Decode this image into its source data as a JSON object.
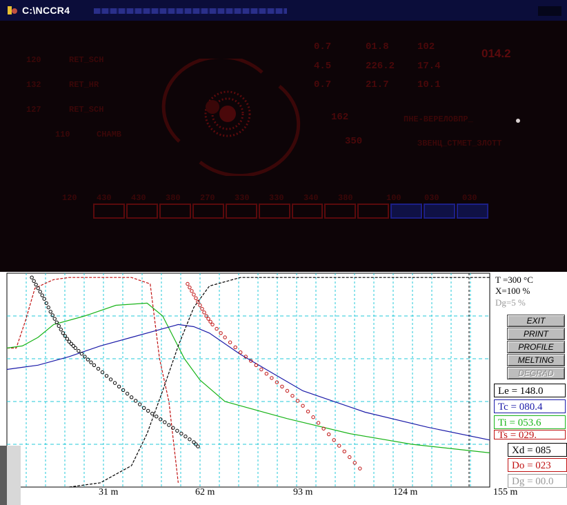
{
  "window": {
    "title": "C:\\NCCR4",
    "icon": "app-icon"
  },
  "upper_panel": {
    "rows_left": [
      {
        "value": "120",
        "label": "RET_SCH"
      },
      {
        "value": "132",
        "label": "RET_HR"
      },
      {
        "value": "127",
        "label": "RET_SCH"
      },
      {
        "value": "110",
        "label": "CHAMB"
      }
    ],
    "grid_right": [
      [
        "0.7",
        "01.8",
        "102"
      ],
      [
        "4.5",
        "226.2",
        "17.4"
      ],
      [
        "0.7",
        "21.7",
        "10.1"
      ]
    ],
    "big_value": "014.2",
    "mid_values": [
      "162",
      "350"
    ],
    "mid_labels": [
      "ПНЕ-ВЕРЕЛОВПР_",
      "ЗВЕНЦ_СТМЕТ_ЗЛОТТ"
    ],
    "scale_labels": [
      "120",
      "430",
      "430",
      "380",
      "270",
      "330",
      "330",
      "340",
      "380",
      "100",
      "030",
      "030"
    ]
  },
  "info": {
    "T": "T =300 °C",
    "X": "X=100 %",
    "Dg": "Dg=5 %"
  },
  "buttons": {
    "exit": "EXIT",
    "print": "PRINT",
    "profile": "PROFILE",
    "melting": "MELTING",
    "degrad": "DEGRAD"
  },
  "readouts": {
    "le": "Le = 148.0",
    "tc": "Tc = 080.4",
    "ti": "Ti = 053.6",
    "ts": "Ts = 029.",
    "xd": "Xd = 085",
    "do": "Do = 023",
    "dg": "Dg = 00.0"
  },
  "colors": {
    "Le": "#000000",
    "Tc": "#1a1aa8",
    "Ti": "#18b418",
    "Ts": "#c01010",
    "Do": "#c01010",
    "Dg": "#9a9a9a",
    "grid": "#22c8d8"
  },
  "chart_data": {
    "type": "line",
    "x_tick_labels": [
      "31 m",
      "62 m",
      "93 m",
      "124 m",
      "155 m"
    ],
    "x_range": [
      0,
      155
    ],
    "y_range": [
      0,
      100
    ],
    "series": [
      {
        "key": "Ts",
        "color": "#c01010",
        "style": "dashed-then-solid",
        "x": [
          0,
          3,
          6,
          9,
          12,
          15,
          20,
          40,
          46,
          49,
          52,
          55
        ],
        "y": [
          65,
          65,
          78,
          93,
          95,
          97,
          98,
          98,
          95,
          60,
          40,
          2
        ]
      },
      {
        "key": "Ti",
        "color": "#18b418",
        "style": "solid",
        "x": [
          0,
          5,
          10,
          15,
          25,
          35,
          45,
          50,
          57,
          62,
          70,
          90,
          110,
          130,
          155
        ],
        "y": [
          65,
          66,
          70,
          76,
          80,
          85,
          86,
          80,
          60,
          50,
          40,
          32,
          25,
          20,
          16
        ]
      },
      {
        "key": "Tc",
        "color": "#1a1aa8",
        "style": "solid",
        "x": [
          0,
          5,
          10,
          20,
          30,
          40,
          50,
          55,
          60,
          65,
          75,
          95,
          115,
          135,
          155
        ],
        "y": [
          55,
          56,
          57,
          61,
          66,
          70,
          74,
          76,
          75,
          72,
          62,
          45,
          35,
          28,
          22
        ]
      },
      {
        "key": "Le",
        "color": "#000000",
        "style": "dashed-then-solid",
        "x": [
          20,
          30,
          40,
          45,
          50,
          55,
          60,
          65,
          75,
          100,
          130,
          155
        ],
        "y": [
          0,
          2,
          10,
          25,
          45,
          66,
          84,
          94,
          98,
          98,
          98,
          98
        ]
      },
      {
        "key": "Xd",
        "color": "#000000",
        "style": "open-circles",
        "x": [
          8,
          10,
          12,
          14,
          16,
          18,
          20,
          22,
          25,
          28,
          32,
          36,
          40,
          44,
          48,
          52,
          56,
          60,
          62
        ],
        "y": [
          98,
          93,
          88,
          82,
          77,
          72,
          68,
          65,
          61,
          57,
          52,
          47,
          42,
          37,
          33,
          29,
          25,
          21,
          18
        ]
      },
      {
        "key": "Do",
        "color": "#c01010",
        "style": "open-circles",
        "x": [
          58,
          60,
          62,
          64,
          66,
          70,
          75,
          80,
          85,
          90,
          95,
          100,
          105,
          110,
          115
        ],
        "y": [
          95,
          90,
          85,
          80,
          76,
          70,
          63,
          57,
          51,
          45,
          38,
          30,
          22,
          14,
          6
        ]
      }
    ]
  }
}
